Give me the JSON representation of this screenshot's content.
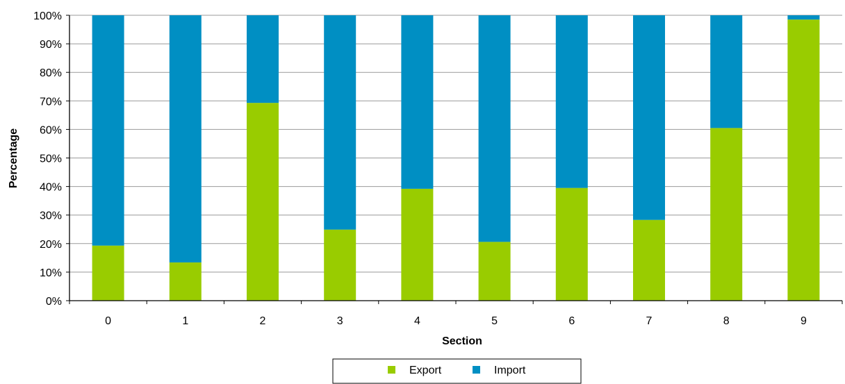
{
  "chart_data": {
    "type": "bar",
    "stacked": true,
    "percent": true,
    "title": "",
    "xlabel": "Section",
    "ylabel": "Percentage",
    "categories": [
      "0",
      "1",
      "2",
      "3",
      "4",
      "5",
      "6",
      "7",
      "8",
      "9"
    ],
    "series": [
      {
        "name": "Export",
        "color": "#99cc00",
        "values": [
          19.3,
          13.4,
          69.3,
          24.9,
          39.2,
          20.6,
          39.5,
          28.3,
          60.5,
          98.5
        ]
      },
      {
        "name": "Import",
        "color": "#008fc3",
        "values": [
          80.7,
          86.6,
          30.7,
          75.1,
          60.8,
          79.4,
          60.5,
          71.7,
          39.5,
          1.5
        ]
      }
    ],
    "ylim": [
      0,
      100
    ],
    "yticks": [
      "0%",
      "10%",
      "20%",
      "30%",
      "40%",
      "50%",
      "60%",
      "70%",
      "80%",
      "90%",
      "100%"
    ],
    "grid": true,
    "legend": "bottom-center"
  }
}
